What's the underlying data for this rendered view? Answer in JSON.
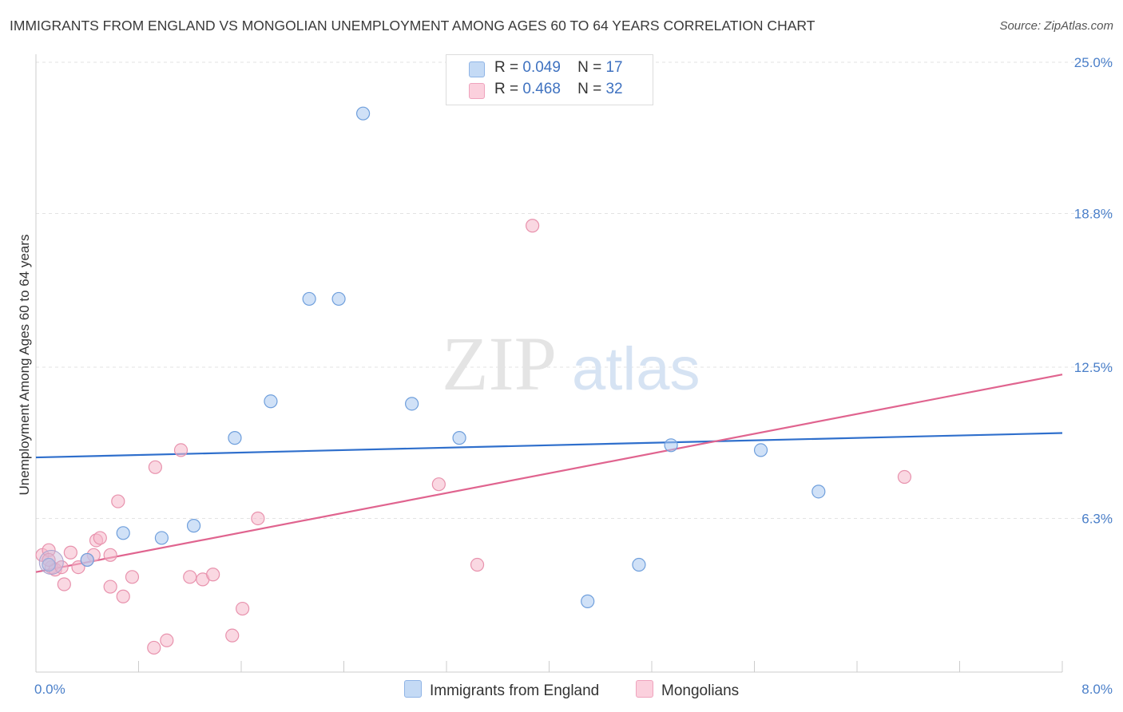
{
  "title": "IMMIGRANTS FROM ENGLAND VS MONGOLIAN UNEMPLOYMENT AMONG AGES 60 TO 64 YEARS CORRELATION CHART",
  "source": "Source: ZipAtlas.com",
  "watermark": {
    "zip": "ZIP",
    "atlas": "atlas"
  },
  "legend": {
    "rows": [
      {
        "r_label": "R =",
        "r_value": "0.049",
        "n_label": "N =",
        "n_value": "17",
        "color": "#a9c8f0"
      },
      {
        "r_label": "R =",
        "r_value": "0.468",
        "n_label": "N =",
        "n_value": "32",
        "color": "#f5b8cb"
      }
    ]
  },
  "bottom_legend": [
    {
      "label": "Immigrants from England",
      "color": "#a9c8f0"
    },
    {
      "label": "Mongolians",
      "color": "#f5b8cb"
    }
  ],
  "chart_data": {
    "type": "scatter",
    "title": "IMMIGRANTS FROM ENGLAND VS MONGOLIAN UNEMPLOYMENT AMONG AGES 60 TO 64 YEARS CORRELATION CHART",
    "xlabel": "",
    "ylabel": "Unemployment Among Ages 60 to 64 years",
    "xlim": [
      0,
      8
    ],
    "ylim": [
      0,
      25
    ],
    "x_tick_labels": [
      "0.0%",
      "8.0%"
    ],
    "y_ticks": [
      6.3,
      12.5,
      18.8,
      25.0
    ],
    "y_tick_labels": [
      "6.3%",
      "12.5%",
      "18.8%",
      "25.0%"
    ],
    "grid": true,
    "legend_position": "top-center",
    "series": [
      {
        "name": "Immigrants from England",
        "color": "#a9c8f0",
        "stroke": "#6f9fdc",
        "line_color": "#2f6fcc",
        "points": [
          [
            0.1,
            4.4
          ],
          [
            0.4,
            4.6
          ],
          [
            0.68,
            5.7
          ],
          [
            0.98,
            5.5
          ],
          [
            1.23,
            6.0
          ],
          [
            1.55,
            9.6
          ],
          [
            1.83,
            11.1
          ],
          [
            2.13,
            15.3
          ],
          [
            2.36,
            15.3
          ],
          [
            2.55,
            22.9
          ],
          [
            2.93,
            11.0
          ],
          [
            3.3,
            9.6
          ],
          [
            4.3,
            2.9
          ],
          [
            4.7,
            4.4
          ],
          [
            4.95,
            9.3
          ],
          [
            5.65,
            9.1
          ],
          [
            6.1,
            7.4
          ]
        ],
        "trend": [
          [
            0,
            8.8
          ],
          [
            8,
            9.8
          ]
        ]
      },
      {
        "name": "Mongolians",
        "color": "#f5b8cb",
        "stroke": "#e892ad",
        "line_color": "#e0648f",
        "points": [
          [
            0.05,
            4.8
          ],
          [
            0.1,
            5.0
          ],
          [
            0.12,
            4.3
          ],
          [
            0.15,
            4.2
          ],
          [
            0.22,
            3.6
          ],
          [
            0.27,
            4.9
          ],
          [
            0.33,
            4.3
          ],
          [
            0.45,
            4.8
          ],
          [
            0.4,
            4.6
          ],
          [
            0.47,
            5.4
          ],
          [
            0.5,
            5.5
          ],
          [
            0.58,
            3.5
          ],
          [
            0.64,
            7.0
          ],
          [
            0.68,
            3.1
          ],
          [
            0.75,
            3.9
          ],
          [
            0.92,
            1.0
          ],
          [
            0.93,
            8.4
          ],
          [
            1.02,
            1.3
          ],
          [
            1.13,
            9.1
          ],
          [
            1.2,
            3.9
          ],
          [
            1.3,
            3.8
          ],
          [
            1.38,
            4.0
          ],
          [
            1.53,
            1.5
          ],
          [
            1.61,
            2.6
          ],
          [
            1.73,
            6.3
          ],
          [
            0.58,
            4.8
          ],
          [
            3.14,
            7.7
          ],
          [
            3.44,
            4.4
          ],
          [
            3.87,
            18.3
          ],
          [
            6.77,
            8.0
          ],
          [
            0.1,
            4.6
          ],
          [
            0.2,
            4.3
          ]
        ],
        "trend": [
          [
            0,
            4.1
          ],
          [
            8,
            12.2
          ]
        ]
      }
    ]
  }
}
